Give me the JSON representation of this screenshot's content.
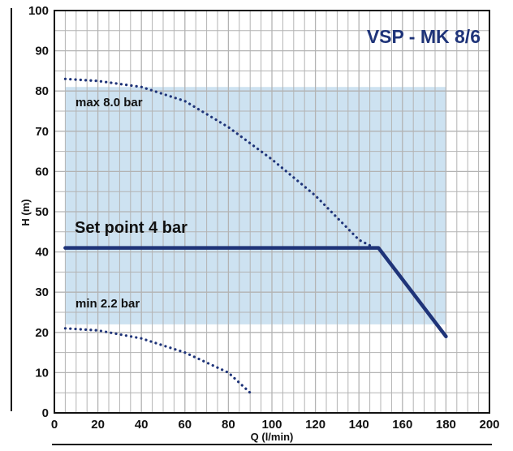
{
  "chart_data": {
    "type": "line",
    "title": "VSP - MK 8/6",
    "xlabel": "Q (l/min)",
    "ylabel": "H (m)",
    "xlim": [
      0,
      200
    ],
    "ylim": [
      0,
      100
    ],
    "x_ticks": [
      "0",
      "20",
      "40",
      "60",
      "80",
      "100",
      "120",
      "140",
      "160",
      "180",
      "200"
    ],
    "y_ticks": [
      "0",
      "10",
      "20",
      "30",
      "40",
      "50",
      "60",
      "70",
      "80",
      "90",
      "100"
    ],
    "grid": true,
    "colors": {
      "region_fill": "#bcd8ec",
      "setpoint_line": "#1f3479",
      "dotted_curves": "#1f3479",
      "title": "#1f3479",
      "grid": "#b3b3b3"
    },
    "operating_region": {
      "x": [
        5,
        180
      ],
      "y": [
        22,
        81
      ]
    },
    "series": [
      {
        "style": "dotted",
        "x": [
          5,
          20,
          40,
          60,
          80,
          100,
          120,
          140,
          149
        ],
        "y": [
          83,
          82.5,
          81,
          77.5,
          71,
          63,
          54,
          43,
          40.5
        ]
      },
      {
        "style": "dotted",
        "x": [
          5,
          20,
          40,
          60,
          80,
          90
        ],
        "y": [
          21,
          20.5,
          18.5,
          15,
          10,
          5
        ]
      },
      {
        "style": "solid",
        "x": [
          5,
          149,
          180
        ],
        "y": [
          41,
          41,
          19
        ]
      }
    ],
    "annotations": {
      "max": "max 8.0 bar",
      "setpoint": "Set point 4 bar",
      "min": "min 2.2 bar"
    }
  }
}
